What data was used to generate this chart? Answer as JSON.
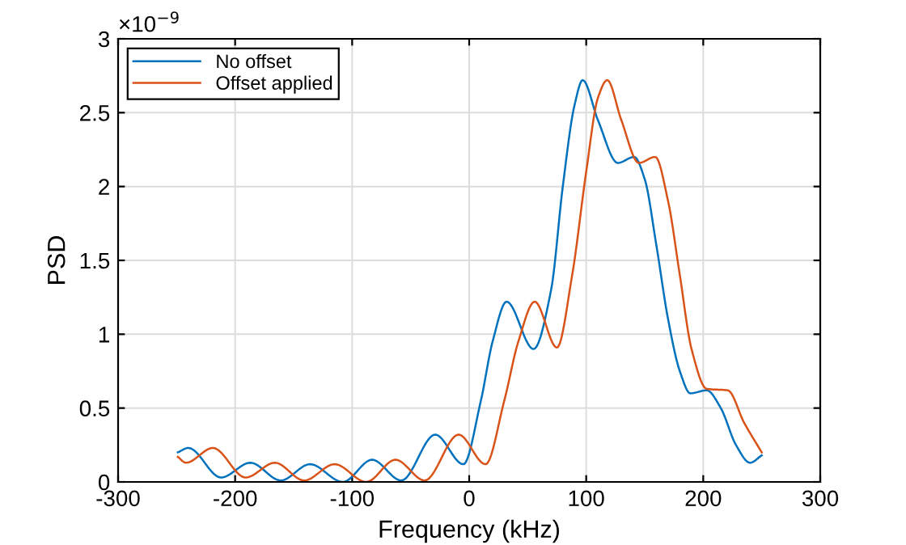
{
  "chart_data": {
    "type": "line",
    "xlabel": "Frequency (kHz)",
    "ylabel": "PSD",
    "annotations": [
      "×10$^{−9}$"
    ],
    "xlim": [
      -300,
      300
    ],
    "xticks": [
      -300,
      -200,
      -100,
      0,
      100,
      200,
      300
    ],
    "ylim": [
      0,
      3
    ],
    "yticks": [
      0,
      0.5,
      1,
      1.5,
      2,
      2.5,
      3
    ],
    "grid": true,
    "legend": "top left",
    "marker": "none",
    "line_style": "solid",
    "series": [
      {
        "name": "No offset",
        "color": "#0072bd",
        "x": [
          -249,
          -240,
          -212,
          -187,
          -161,
          -136,
          -108,
          -83,
          -58,
          -29,
          -5,
          10,
          20,
          32,
          55,
          70,
          80,
          90,
          97,
          110,
          127,
          141,
          150,
          160,
          170,
          180,
          189,
          203,
          215,
          228,
          240,
          250
        ],
        "values": [
          0.2,
          0.23,
          0.03,
          0.13,
          0.01,
          0.12,
          0.0,
          0.15,
          0.01,
          0.32,
          0.12,
          0.55,
          0.95,
          1.22,
          0.9,
          1.3,
          2.0,
          2.55,
          2.72,
          2.45,
          2.16,
          2.2,
          2.05,
          1.6,
          1.1,
          0.75,
          0.6,
          0.62,
          0.5,
          0.25,
          0.13,
          0.18
        ]
      },
      {
        "name": "Offset applied",
        "color": "#d95319",
        "x": [
          -249,
          -242,
          -219,
          -191,
          -166,
          -141,
          -115,
          -88,
          -63,
          -38,
          -9,
          14,
          30,
          42,
          56,
          75,
          88,
          100,
          110,
          118,
          130,
          145,
          159,
          170,
          180,
          190,
          203,
          221,
          235,
          250
        ],
        "values": [
          0.17,
          0.13,
          0.23,
          0.03,
          0.13,
          0.01,
          0.12,
          0.0,
          0.15,
          0.01,
          0.32,
          0.12,
          0.55,
          0.95,
          1.22,
          0.91,
          1.4,
          2.1,
          2.6,
          2.72,
          2.45,
          2.16,
          2.2,
          1.9,
          1.4,
          0.9,
          0.63,
          0.62,
          0.4,
          0.2
        ]
      }
    ]
  }
}
